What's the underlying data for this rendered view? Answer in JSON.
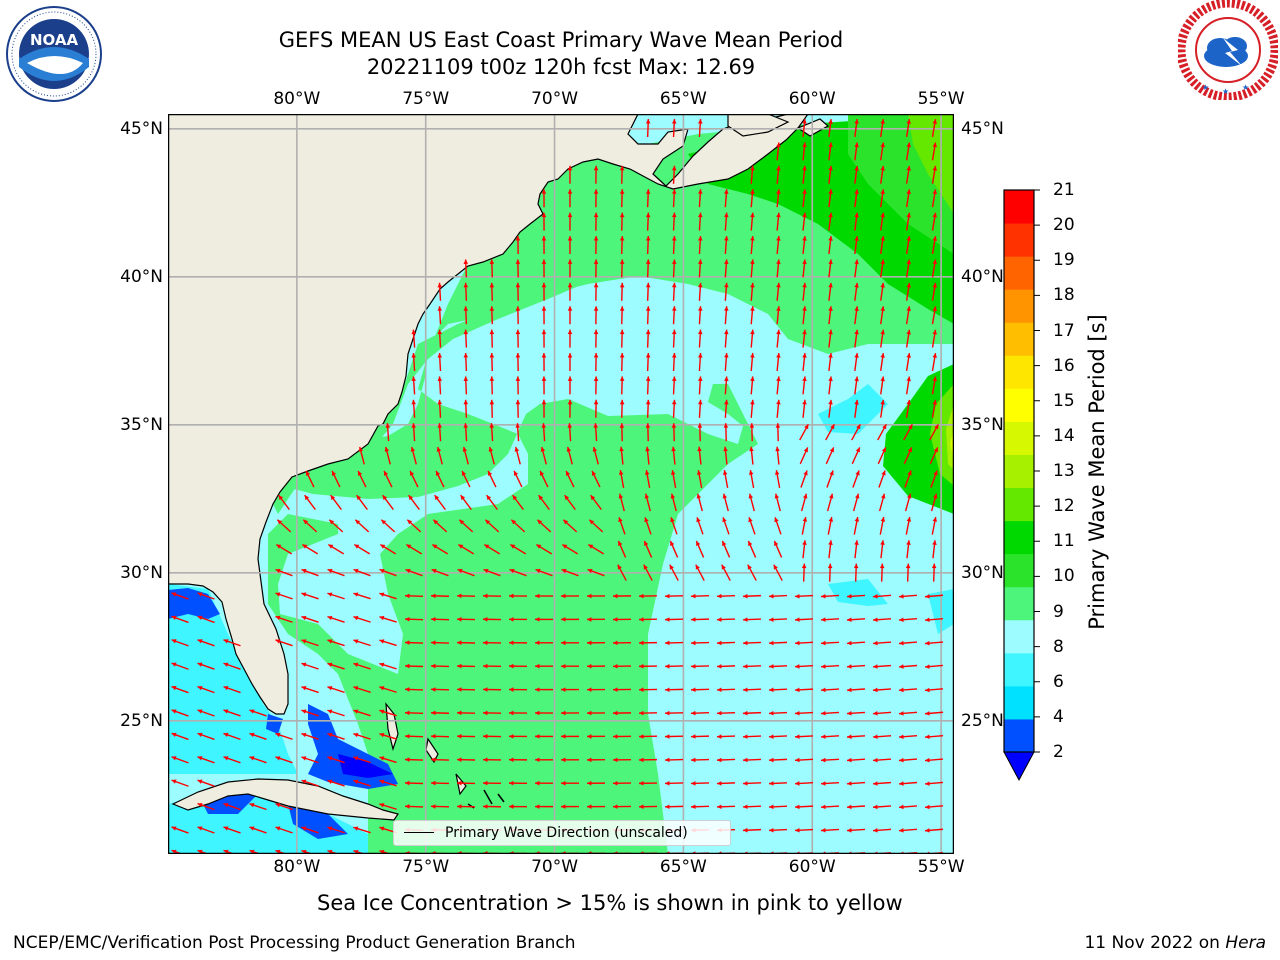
{
  "title_line1": "GEFS MEAN US East Coast Primary Wave Mean Period",
  "title_line2": "20221109 t00z 120h fcst   Max: 12.69",
  "logos": {
    "left": "noaa-logo",
    "right": "national-weather-service-logo"
  },
  "map": {
    "projection": "lat-lon",
    "lon_range": [
      -85,
      -54.5
    ],
    "lat_range": [
      20.5,
      45.5
    ],
    "grid": true,
    "x_ticks": [
      "80°W",
      "75°W",
      "70°W",
      "65°W",
      "60°W",
      "55°W"
    ],
    "y_ticks": [
      "45°N",
      "40°N",
      "35°N",
      "30°N",
      "25°N"
    ],
    "colors": {
      "land": "#efede0",
      "coast": "#000000",
      "arrow": "#ff0000",
      "gridline": "#b0b0b0"
    }
  },
  "legend": {
    "label": "Primary Wave Direction (unscaled)"
  },
  "colorbar": {
    "label": "Primary Wave Mean Period [s]",
    "ticks": [
      "21",
      "20",
      "19",
      "18",
      "17",
      "16",
      "15",
      "14",
      "13",
      "12",
      "11",
      "10",
      "9",
      "8",
      "6",
      "4",
      "2"
    ],
    "colors_bottom_to_top": [
      "#0050ff",
      "#00e0ff",
      "#3ff5ff",
      "#9dfcff",
      "#4df57a",
      "#2be32b",
      "#00d900",
      "#64e800",
      "#a7f000",
      "#d6f800",
      "#ffff00",
      "#ffe600",
      "#ffbf00",
      "#ff9400",
      "#ff6400",
      "#ff3200",
      "#ff0000"
    ],
    "extend_below_color": "#0000ff"
  },
  "footnote": "Sea Ice Concentration > 15% is shown in pink to yellow",
  "footer": {
    "left": "NCEP/EMC/Verification Post Processing Product Generation Branch",
    "date": "11 Nov 2022 on ",
    "machine": "Hera"
  }
}
